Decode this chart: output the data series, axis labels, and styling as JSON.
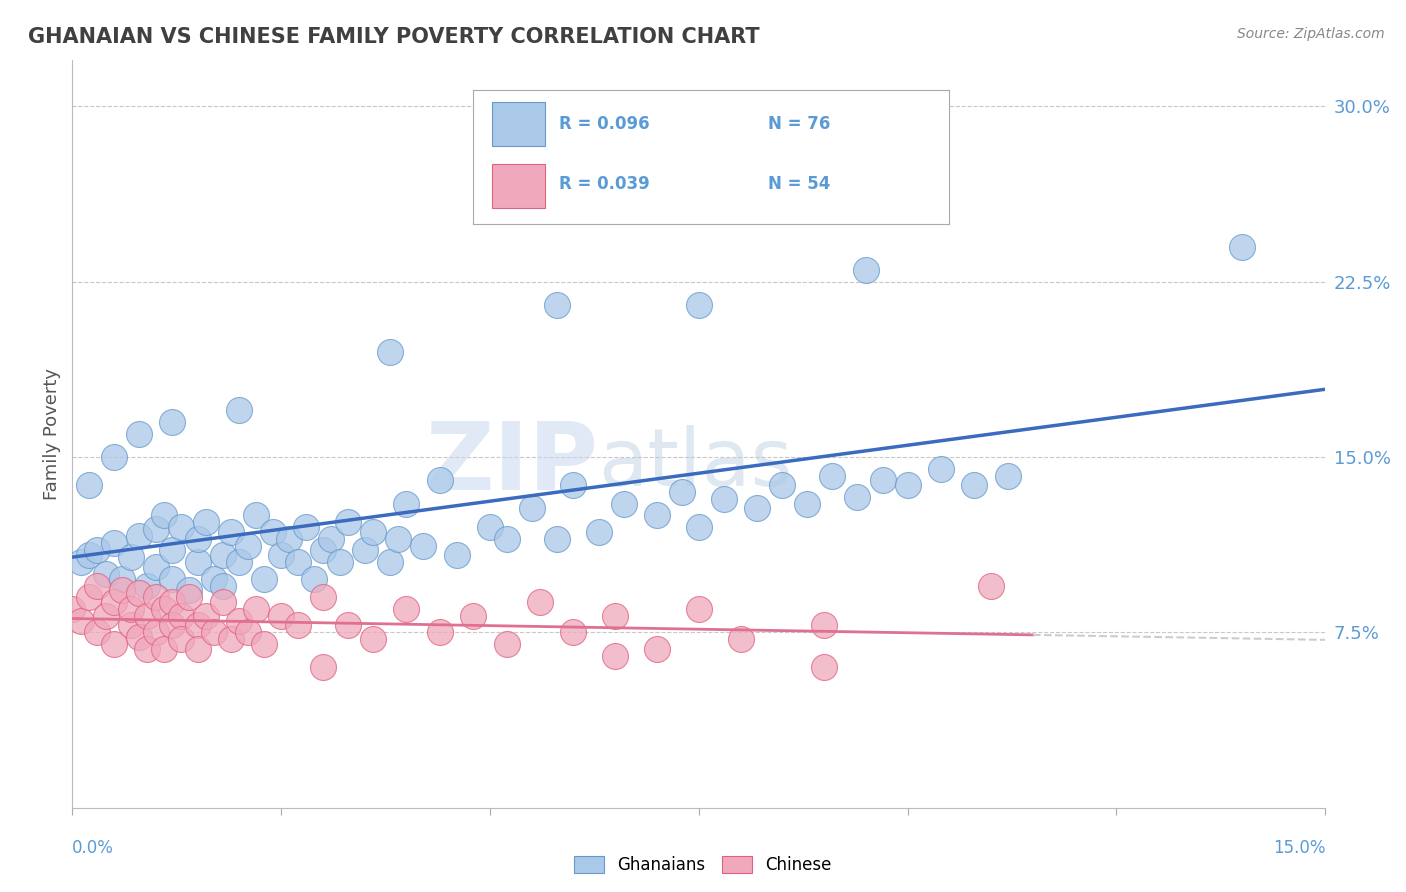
{
  "title": "GHANAIAN VS CHINESE FAMILY POVERTY CORRELATION CHART",
  "source": "Source: ZipAtlas.com",
  "ylabel": "Family Poverty",
  "xmin": 0.0,
  "xmax": 0.15,
  "ymin": 0.0,
  "ymax": 0.32,
  "yticks": [
    0.075,
    0.15,
    0.225,
    0.3
  ],
  "ytick_labels": [
    "7.5%",
    "15.0%",
    "22.5%",
    "30.0%"
  ],
  "blue_line_color": "#3a6bbf",
  "pink_line_color": "#e07090",
  "background_color": "#ffffff",
  "grid_color": "#c8c8c8",
  "watermark_zip": "ZIP",
  "watermark_atlas": "atlas",
  "title_color": "#404040",
  "axis_label_color": "#5b9bd5",
  "blue_scatter_color": "#aac8e8",
  "pink_scatter_color": "#f0a8bc",
  "blue_scatter_edgecolor": "#6699cc",
  "pink_scatter_edgecolor": "#e06080",
  "blue_label_R": "R = 0.096",
  "blue_label_N": "N = 76",
  "pink_label_R": "R = 0.039",
  "pink_label_N": "N = 54",
  "ghanaians_label": "Ghanaians",
  "chinese_label": "Chinese",
  "blue_x": [
    0.001,
    0.002,
    0.003,
    0.004,
    0.005,
    0.006,
    0.007,
    0.008,
    0.009,
    0.01,
    0.01,
    0.011,
    0.012,
    0.012,
    0.013,
    0.014,
    0.015,
    0.015,
    0.016,
    0.017,
    0.018,
    0.018,
    0.019,
    0.02,
    0.021,
    0.022,
    0.023,
    0.024,
    0.025,
    0.026,
    0.027,
    0.028,
    0.029,
    0.03,
    0.031,
    0.032,
    0.033,
    0.035,
    0.036,
    0.038,
    0.039,
    0.04,
    0.042,
    0.044,
    0.046,
    0.05,
    0.052,
    0.055,
    0.058,
    0.06,
    0.063,
    0.066,
    0.07,
    0.073,
    0.075,
    0.078,
    0.082,
    0.085,
    0.088,
    0.091,
    0.094,
    0.097,
    0.1,
    0.104,
    0.108,
    0.112,
    0.038,
    0.058,
    0.075,
    0.095,
    0.002,
    0.005,
    0.008,
    0.012,
    0.02,
    0.14
  ],
  "blue_y": [
    0.105,
    0.108,
    0.11,
    0.1,
    0.113,
    0.098,
    0.107,
    0.116,
    0.095,
    0.119,
    0.103,
    0.125,
    0.098,
    0.11,
    0.12,
    0.093,
    0.105,
    0.115,
    0.122,
    0.098,
    0.108,
    0.095,
    0.118,
    0.105,
    0.112,
    0.125,
    0.098,
    0.118,
    0.108,
    0.115,
    0.105,
    0.12,
    0.098,
    0.11,
    0.115,
    0.105,
    0.122,
    0.11,
    0.118,
    0.105,
    0.115,
    0.13,
    0.112,
    0.14,
    0.108,
    0.12,
    0.115,
    0.128,
    0.115,
    0.138,
    0.118,
    0.13,
    0.125,
    0.135,
    0.12,
    0.132,
    0.128,
    0.138,
    0.13,
    0.142,
    0.133,
    0.14,
    0.138,
    0.145,
    0.138,
    0.142,
    0.195,
    0.215,
    0.215,
    0.23,
    0.138,
    0.15,
    0.16,
    0.165,
    0.17,
    0.24
  ],
  "pink_x": [
    0.0,
    0.001,
    0.002,
    0.003,
    0.003,
    0.004,
    0.005,
    0.005,
    0.006,
    0.007,
    0.007,
    0.008,
    0.008,
    0.009,
    0.009,
    0.01,
    0.01,
    0.011,
    0.011,
    0.012,
    0.012,
    0.013,
    0.013,
    0.014,
    0.015,
    0.015,
    0.016,
    0.017,
    0.018,
    0.019,
    0.02,
    0.021,
    0.022,
    0.023,
    0.025,
    0.027,
    0.03,
    0.033,
    0.036,
    0.04,
    0.044,
    0.048,
    0.052,
    0.056,
    0.06,
    0.065,
    0.07,
    0.075,
    0.08,
    0.09,
    0.03,
    0.065,
    0.09,
    0.11
  ],
  "pink_y": [
    0.085,
    0.08,
    0.09,
    0.075,
    0.095,
    0.082,
    0.088,
    0.07,
    0.093,
    0.078,
    0.085,
    0.073,
    0.092,
    0.068,
    0.082,
    0.09,
    0.075,
    0.085,
    0.068,
    0.088,
    0.078,
    0.082,
    0.072,
    0.09,
    0.078,
    0.068,
    0.082,
    0.075,
    0.088,
    0.072,
    0.08,
    0.075,
    0.085,
    0.07,
    0.082,
    0.078,
    0.09,
    0.078,
    0.072,
    0.085,
    0.075,
    0.082,
    0.07,
    0.088,
    0.075,
    0.082,
    0.068,
    0.085,
    0.072,
    0.078,
    0.06,
    0.065,
    0.06,
    0.095
  ]
}
